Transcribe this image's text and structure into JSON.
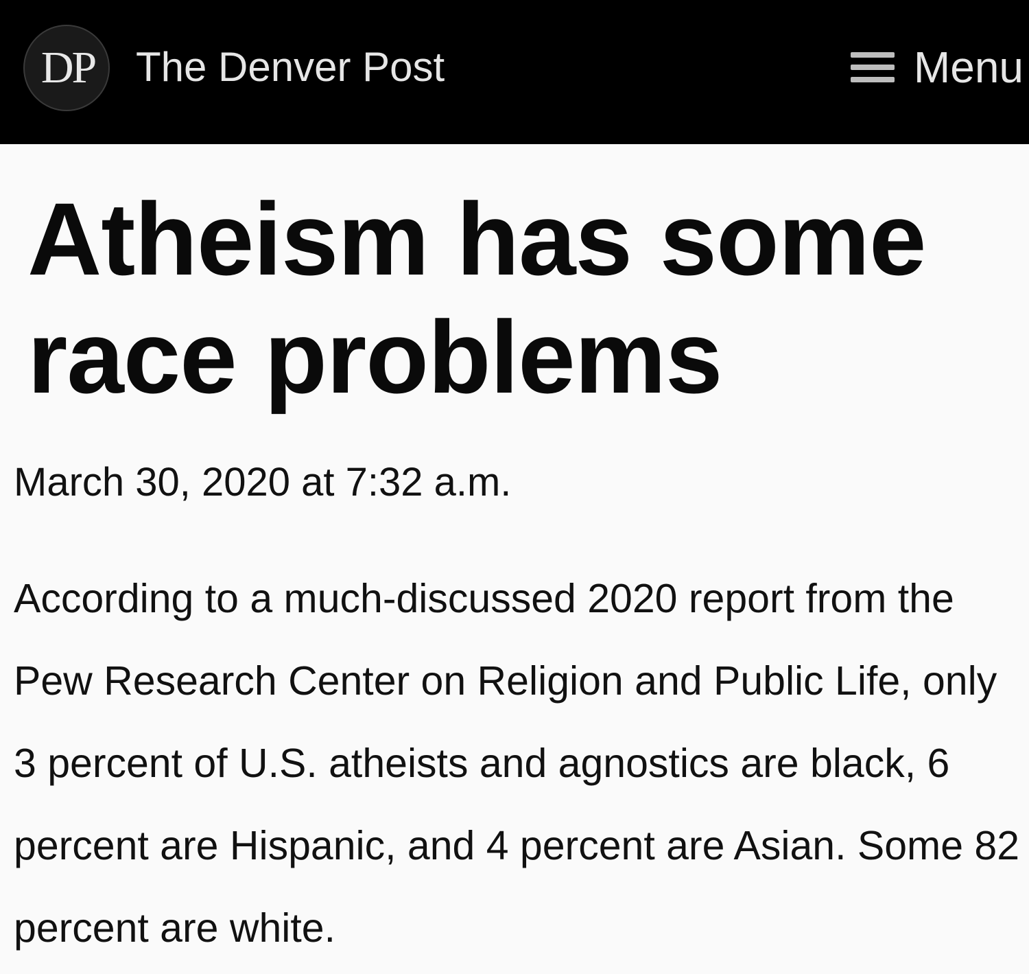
{
  "header": {
    "logo_text": "DP",
    "site_name": "The Denver Post",
    "menu_label": "Menu",
    "colors": {
      "background": "#000000",
      "text": "#e6e6e6"
    }
  },
  "article": {
    "headline": "Atheism has some race problems",
    "dateline": "March 30, 2020 at 7:32 a.m.",
    "body": "According to a much-discussed 2020 report from the Pew Research Center on Religion and Public Life, only 3 percent of U.S. atheists and agnostics are black, 6 percent are Hispanic, and 4 percent are Asian. Some 82 percent are white."
  },
  "icons": {
    "menu": "hamburger-menu-icon",
    "logo": "denver-post-logo"
  }
}
